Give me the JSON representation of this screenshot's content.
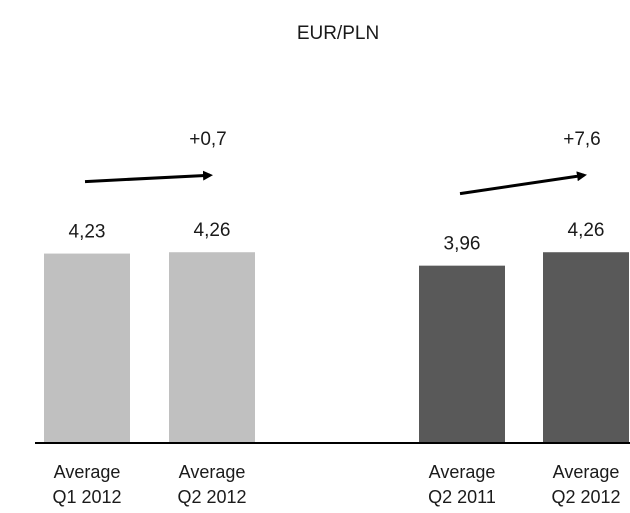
{
  "chart_data": {
    "type": "bar",
    "title": "EUR/PLN",
    "categories": [
      "Average Q1 2012",
      "Average Q2 2012",
      "Average Q2 2011",
      "Average Q2 2012"
    ],
    "category_lines": [
      [
        "Average",
        "Q1 2012"
      ],
      [
        "Average",
        "Q2 2012"
      ],
      [
        "Average",
        "Q2 2011"
      ],
      [
        "Average",
        "Q2 2012"
      ]
    ],
    "values": [
      4.23,
      4.26,
      3.96,
      4.26
    ],
    "value_labels": [
      "4,23",
      "4,26",
      "3,96",
      "4,26"
    ],
    "bar_colors": [
      "#c0c0c0",
      "#c0c0c0",
      "#595959",
      "#595959"
    ],
    "groups": [
      {
        "from": 0,
        "to": 1,
        "change_label": "+0,7"
      },
      {
        "from": 2,
        "to": 3,
        "change_label": "+7,6"
      }
    ],
    "ylim": [
      0,
      4.6
    ],
    "xlabel": "",
    "ylabel": "",
    "grid": false,
    "legend": "none"
  },
  "colors": {
    "baseline": "#000000",
    "text": "#1a1a1a",
    "arrow": "#000000"
  }
}
